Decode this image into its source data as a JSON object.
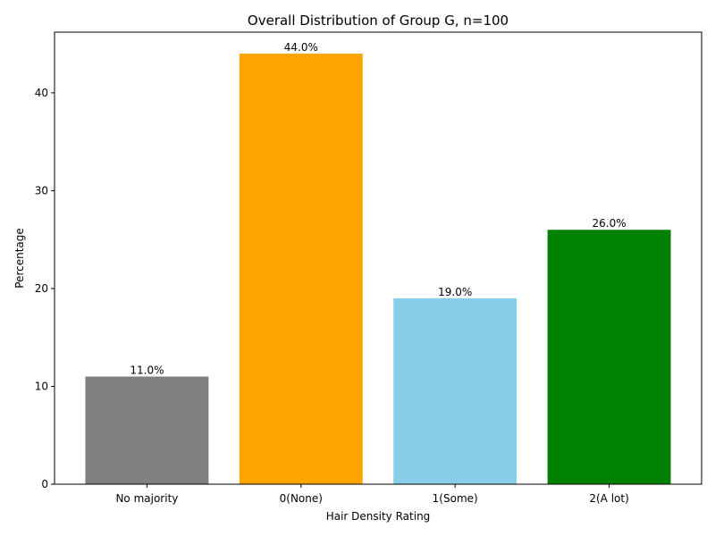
{
  "chart_data": {
    "type": "bar",
    "title": "Overall Distribution of Group G, n=100",
    "xlabel": "Hair Density Rating",
    "ylabel": "Percentage",
    "categories": [
      "No majority",
      "0(None)",
      "1(Some)",
      "2(A lot)"
    ],
    "values": [
      11.0,
      44.0,
      19.0,
      26.0
    ],
    "data_labels": [
      "11.0%",
      "44.0%",
      "19.0%",
      "26.0%"
    ],
    "colors": [
      "#808080",
      "#ffa500",
      "#87ceeb",
      "#008000"
    ],
    "ylim": [
      0,
      46.2
    ],
    "yticks": [
      0,
      10,
      20,
      30,
      40
    ],
    "grid": false,
    "legend": "none"
  }
}
